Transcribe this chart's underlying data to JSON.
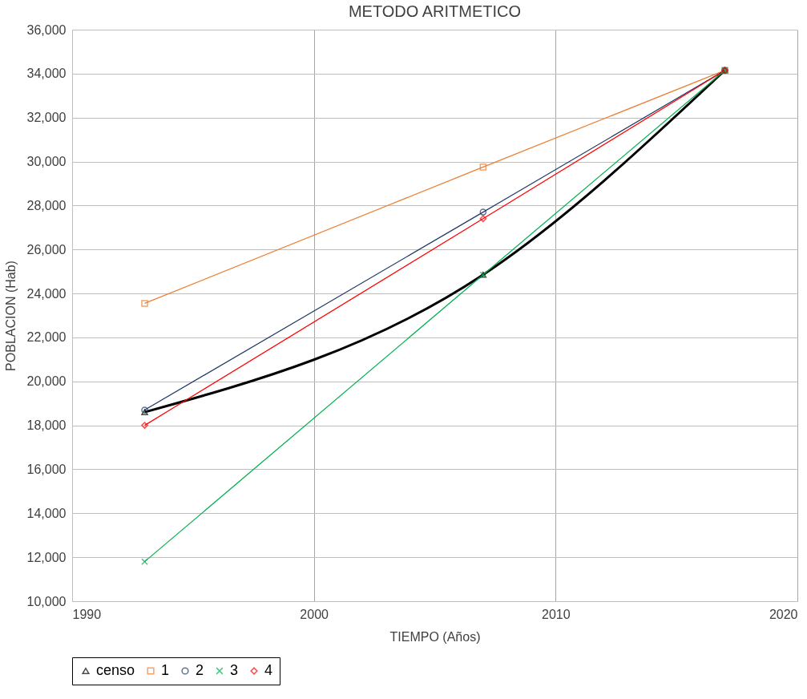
{
  "chart_data": {
    "type": "line",
    "title": "METODO ARITMETICO",
    "xlabel": "TIEMPO (Años)",
    "ylabel": "POBLACION (Hab)",
    "x": [
      1993,
      2007,
      2017
    ],
    "series": [
      {
        "name": "censo",
        "color": "#000000",
        "marker": "triangle",
        "values": [
          18600,
          24850,
          34150
        ]
      },
      {
        "name": "1",
        "color": "#ed7d31",
        "marker": "square",
        "values": [
          23550,
          29750,
          34150
        ]
      },
      {
        "name": "2",
        "color": "#203864",
        "marker": "circle",
        "values": [
          18700,
          27700,
          34150
        ]
      },
      {
        "name": "3",
        "color": "#00b050",
        "marker": "cross",
        "values": [
          11800,
          24850,
          34150
        ]
      },
      {
        "name": "4",
        "color": "#ff0000",
        "marker": "diamond",
        "values": [
          18000,
          27400,
          34150
        ]
      }
    ],
    "xlim": [
      1990,
      2020
    ],
    "xticks": [
      1990,
      2000,
      2010,
      2020
    ],
    "ylim": [
      10000,
      36000
    ],
    "yticks": [
      {
        "value": 10000,
        "label": "10,000"
      },
      {
        "value": 12000,
        "label": "12,000"
      },
      {
        "value": 14000,
        "label": "14,000"
      },
      {
        "value": 16000,
        "label": "16,000"
      },
      {
        "value": 18000,
        "label": "18,000"
      },
      {
        "value": 20000,
        "label": "20,000"
      },
      {
        "value": 22000,
        "label": "22,000"
      },
      {
        "value": 24000,
        "label": "24,000"
      },
      {
        "value": 26000,
        "label": "26,000"
      },
      {
        "value": 28000,
        "label": "28,000"
      },
      {
        "value": 30000,
        "label": "30,000"
      },
      {
        "value": 32000,
        "label": "32,000"
      },
      {
        "value": 34000,
        "label": "34,000"
      },
      {
        "value": 36000,
        "label": "36,000"
      }
    ],
    "grid": true,
    "legend": "bottom"
  }
}
